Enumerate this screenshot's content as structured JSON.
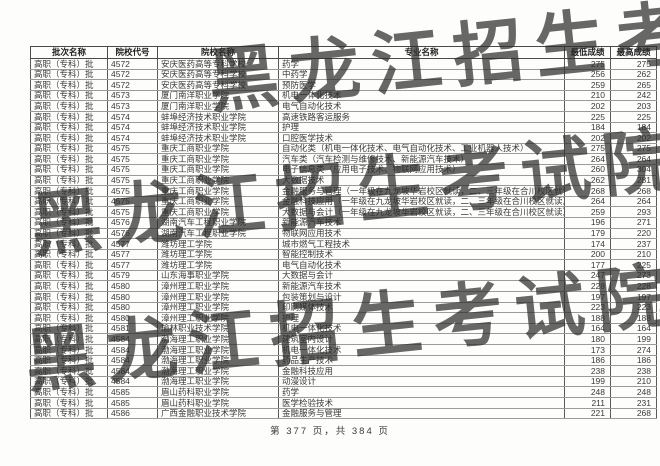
{
  "watermark": {
    "text": "黑龙江招生考试院"
  },
  "footer": {
    "text": "第 377 页，共 384 页"
  },
  "table": {
    "headers": [
      "批次名称",
      "院校代号",
      "院校名称",
      "专业名称",
      "最低成绩",
      "最高成绩"
    ],
    "rows": [
      [
        "高职（专科）批",
        "4572",
        "安庆医药高等专科学校",
        "药学",
        "275",
        "275"
      ],
      [
        "高职（专科）批",
        "4572",
        "安庆医药高等专科学校",
        "中药学",
        "256",
        "262"
      ],
      [
        "高职（专科）批",
        "4572",
        "安庆医药高等专科学校",
        "预防医学",
        "259",
        "265"
      ],
      [
        "高职（专科）批",
        "4573",
        "厦门南洋职业学院",
        "机电一体化技术",
        "210",
        "242"
      ],
      [
        "高职（专科）批",
        "4573",
        "厦门南洋职业学院",
        "电气自动化技术",
        "202",
        "203"
      ],
      [
        "高职（专科）批",
        "4574",
        "蚌埠经济技术职业学院",
        "高速铁路客运服务",
        "225",
        "225"
      ],
      [
        "高职（专科）批",
        "4574",
        "蚌埠经济技术职业学院",
        "护理",
        "184",
        "184"
      ],
      [
        "高职（专科）批",
        "4574",
        "蚌埠经济技术职业学院",
        "口腔医学技术",
        "202",
        "202"
      ],
      [
        "高职（专科）批",
        "4575",
        "重庆工商职业学院",
        "自动化类（机电一体化技术、电气自动化技术、工业机器人技术）",
        "275",
        "275"
      ],
      [
        "高职（专科）批",
        "4575",
        "重庆工商职业学院",
        "汽车类（汽车检测与维修技术、新能源汽车技术）",
        "264",
        "264"
      ],
      [
        "高职（专科）批",
        "4575",
        "重庆工商职业学院",
        "电子信息类（应用电子技术、物联网应用技术）",
        "260",
        "304"
      ],
      [
        "高职（专科）批",
        "4575",
        "重庆工商职业学院",
        "大数据技术",
        "262",
        "281"
      ],
      [
        "高职（专科）批",
        "4575",
        "重庆工商职业学院",
        "金融服务与管理（一年级在九龙坡华岩校区就读，二、三年级在合川校区就读）",
        "268",
        "268"
      ],
      [
        "高职（专科）批",
        "4575",
        "重庆工商职业学院",
        "金融科技应用（一年级在九龙坡华岩校区就读，二、三年级在合川校区就读）",
        "264",
        "264"
      ],
      [
        "高职（专科）批",
        "4575",
        "重庆工商职业学院",
        "大数据与会计（一年级在九龙坡华岩校区就读，二、三年级在合川校区就读）",
        "259",
        "293"
      ],
      [
        "高职（专科）批",
        "4576",
        "湖南汽车工程职业学院",
        "新能源汽车技术",
        "196",
        "271"
      ],
      [
        "高职（专科）批",
        "4576",
        "湖南汽车工程职业学院",
        "物联网应用技术",
        "179",
        "220"
      ],
      [
        "高职（专科）批",
        "4577",
        "潍坊理工学院",
        "城市燃气工程技术",
        "174",
        "237"
      ],
      [
        "高职（专科）批",
        "4577",
        "潍坊理工学院",
        "智能控制技术",
        "200",
        "210"
      ],
      [
        "高职（专科）批",
        "4577",
        "潍坊理工学院",
        "电气自动化技术",
        "177",
        "225"
      ],
      [
        "高职（专科）批",
        "4579",
        "山东海事职业学院",
        "大数据与会计",
        "247",
        "273"
      ],
      [
        "高职（专科）批",
        "4580",
        "漳州理工职业学院",
        "新能源汽车技术",
        "228",
        "228"
      ],
      [
        "高职（专科）批",
        "4580",
        "漳州理工职业学院",
        "包装策划与设计",
        "197",
        "197"
      ],
      [
        "高职（专科）批",
        "4580",
        "漳州理工职业学院",
        "印刷媒体技术",
        "223",
        "223"
      ],
      [
        "高职（专科）批",
        "4580",
        "漳州理工职业学院",
        "护理",
        "188",
        "188"
      ],
      [
        "高职（专科）批",
        "4581",
        "榆林职业技术学院",
        "机电一体化技术",
        "164",
        "164"
      ],
      [
        "高职（专科）批",
        "4584",
        "渤海理工职业学院",
        "建筑室内设计",
        "180",
        "199"
      ],
      [
        "高职（专科）批",
        "4584",
        "渤海理工职业学院",
        "机电一体化技术",
        "173",
        "274"
      ],
      [
        "高职（专科）批",
        "4584",
        "渤海理工职业学院",
        "药品生产技术",
        "186",
        "186"
      ],
      [
        "高职（专科）批",
        "4584",
        "渤海理工职业学院",
        "金融科技应用",
        "238",
        "238"
      ],
      [
        "高职（专科）批",
        "4584",
        "渤海理工职业学院",
        "动漫设计",
        "199",
        "210"
      ],
      [
        "高职（专科）批",
        "4585",
        "眉山药科职业学院",
        "药学",
        "248",
        "248"
      ],
      [
        "高职（专科）批",
        "4585",
        "眉山药科职业学院",
        "医学检验技术",
        "211",
        "231"
      ],
      [
        "高职（专科）批",
        "4586",
        "广西金融职业技术学院",
        "金融服务与管理",
        "221",
        "268"
      ]
    ]
  }
}
